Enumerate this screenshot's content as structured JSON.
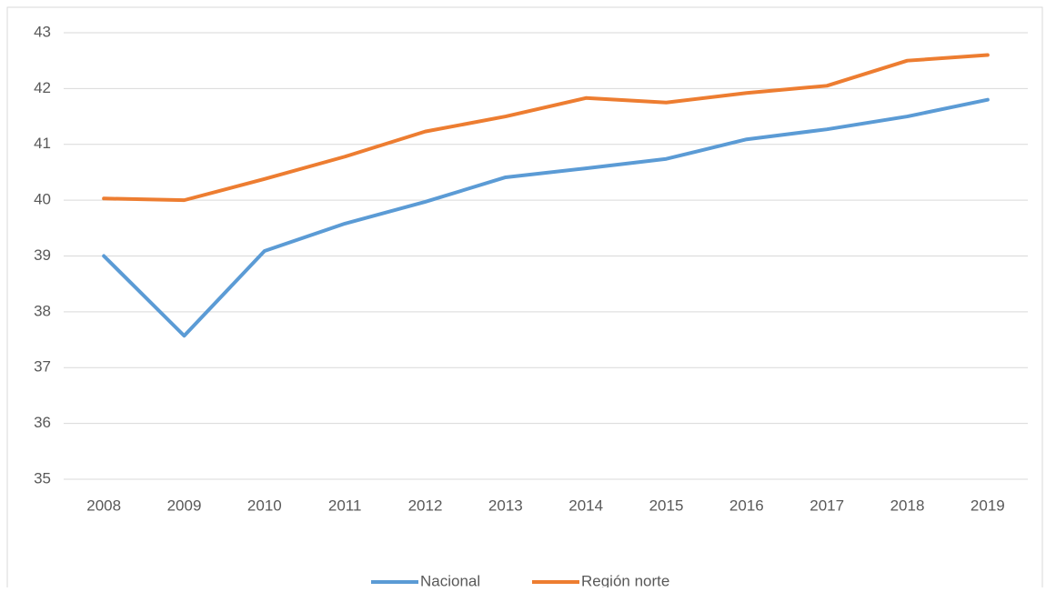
{
  "chart_data": {
    "type": "line",
    "categories": [
      "2008",
      "2009",
      "2010",
      "2011",
      "2012",
      "2013",
      "2014",
      "2015",
      "2016",
      "2017",
      "2018",
      "2019"
    ],
    "series": [
      {
        "name": "Nacional",
        "color": "#5b9bd5",
        "values": [
          39.0,
          37.57,
          39.09,
          39.58,
          39.97,
          40.41,
          40.57,
          40.74,
          41.09,
          41.27,
          41.5,
          41.8
        ]
      },
      {
        "name": "Región norte",
        "color": "#ed7d31",
        "values": [
          40.03,
          40.0,
          40.38,
          40.78,
          41.23,
          41.5,
          41.83,
          41.75,
          41.92,
          42.05,
          42.5,
          42.6
        ]
      }
    ],
    "ylim": [
      35,
      43
    ],
    "yticks": [
      35,
      36,
      37,
      38,
      39,
      40,
      41,
      42,
      43
    ],
    "grid": true,
    "legend": "bottom"
  }
}
